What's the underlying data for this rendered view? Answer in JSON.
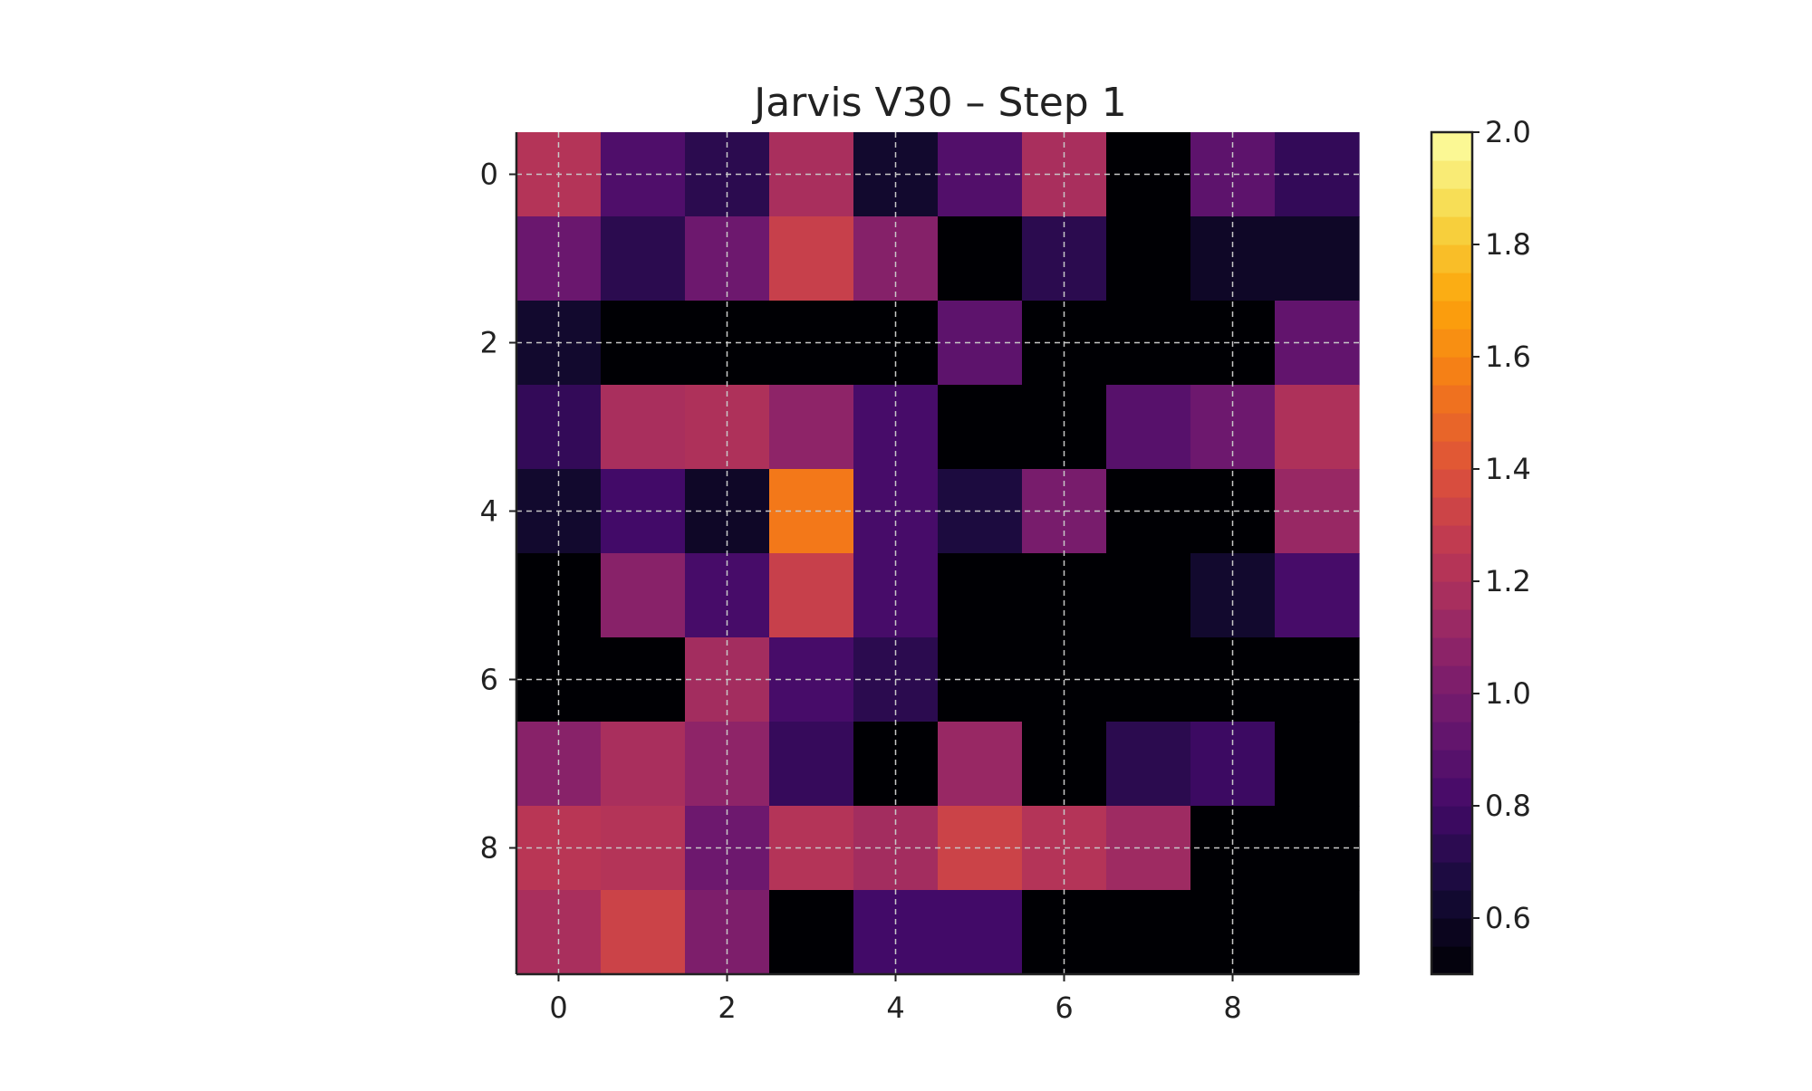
{
  "chart_data": {
    "type": "heatmap",
    "title": "Jarvis V30 – Step 1",
    "xlabel": "",
    "ylabel": "",
    "colormap": "inferno",
    "grid": true,
    "x_ticks": [
      0,
      2,
      4,
      6,
      8
    ],
    "y_ticks": [
      0,
      2,
      4,
      6,
      8
    ],
    "x_tick_labels": [
      "0",
      "2",
      "4",
      "6",
      "8"
    ],
    "y_tick_labels": [
      "0",
      "2",
      "4",
      "6",
      "8"
    ],
    "colorbar": {
      "min": 0.5,
      "max": 2.0,
      "ticks": [
        0.6,
        0.8,
        1.0,
        1.2,
        1.4,
        1.6,
        1.8,
        2.0
      ],
      "tick_labels": [
        "0.6",
        "0.8",
        "1.0",
        "1.2",
        "1.4",
        "1.6",
        "1.8",
        "2.0"
      ]
    },
    "values": [
      [
        1.22,
        0.85,
        0.72,
        1.18,
        0.62,
        0.86,
        1.18,
        0.5,
        0.9,
        0.75
      ],
      [
        0.95,
        0.72,
        0.96,
        1.3,
        1.05,
        0.5,
        0.72,
        0.5,
        0.6,
        0.6
      ],
      [
        0.62,
        0.5,
        0.5,
        0.5,
        0.5,
        0.9,
        0.5,
        0.5,
        0.5,
        0.92
      ],
      [
        0.75,
        1.18,
        1.2,
        1.08,
        0.82,
        0.5,
        0.5,
        0.88,
        0.96,
        1.2
      ],
      [
        0.62,
        0.8,
        0.6,
        1.55,
        0.82,
        0.67,
        1.0,
        0.5,
        0.5,
        1.12
      ],
      [
        0.5,
        1.06,
        0.82,
        1.3,
        0.82,
        0.5,
        0.5,
        0.5,
        0.62,
        0.82
      ],
      [
        0.5,
        0.5,
        1.16,
        0.82,
        0.72,
        0.5,
        0.5,
        0.5,
        0.5,
        0.5
      ],
      [
        1.06,
        1.18,
        1.08,
        0.76,
        0.5,
        1.12,
        0.5,
        0.72,
        0.78,
        0.5
      ],
      [
        1.24,
        1.22,
        0.96,
        1.22,
        1.16,
        1.32,
        1.22,
        1.14,
        0.5,
        0.5
      ],
      [
        1.18,
        1.32,
        1.02,
        0.5,
        0.8,
        0.8,
        0.5,
        0.5,
        0.5,
        0.5
      ]
    ]
  }
}
